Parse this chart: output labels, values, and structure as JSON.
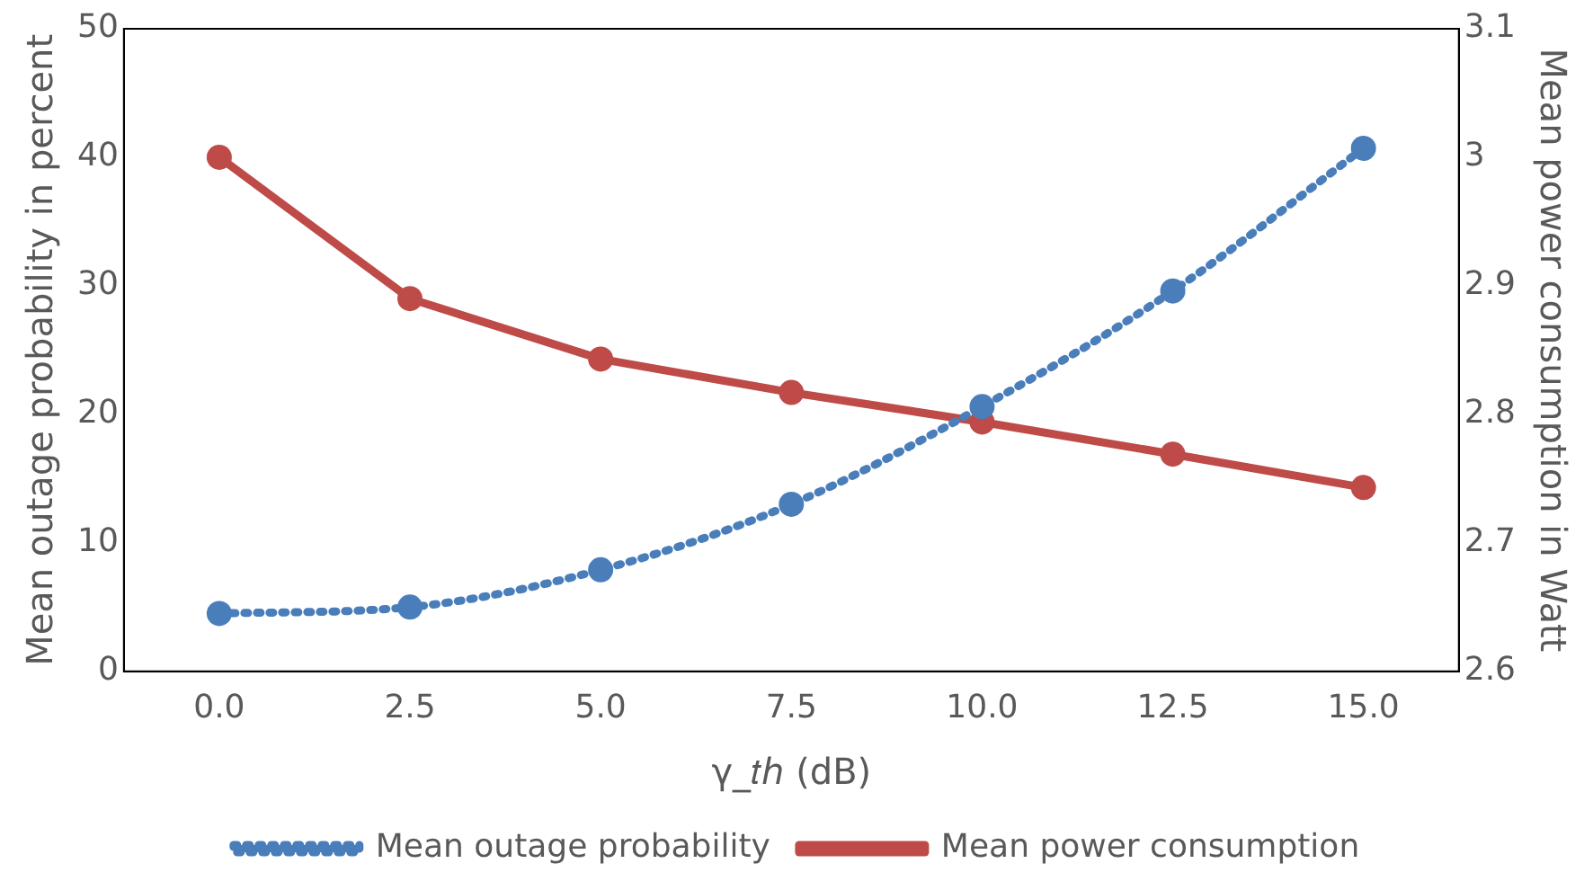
{
  "chart_data": {
    "type": "line",
    "xlabel": "γ_𝑡ℎ (dB)",
    "ylabel": "Mean outage probability in percent",
    "y2label": "Mean power consumption in Watt",
    "categories": [
      "0.0",
      "2.5",
      "5.0",
      "7.5",
      "10.0",
      "12.5",
      "15.0"
    ],
    "series": [
      {
        "name": "Mean outage probability",
        "color": "#4a7ebb",
        "values": [
          4.5,
          5.0,
          7.9,
          13.0,
          20.6,
          29.6,
          40.7
        ],
        "line_style": "dotted",
        "marker": "circle"
      },
      {
        "name": "Mean power consumption",
        "color": "#be4b48",
        "values": [
          3.0,
          2.89,
          2.843,
          2.817,
          2.794,
          2.769,
          2.743
        ],
        "line_style": "solid",
        "marker": "circle",
        "axis": "y2"
      }
    ],
    "ylim": [
      0,
      50
    ],
    "yticks": [
      0,
      10,
      20,
      30,
      40,
      50
    ],
    "y2lim": [
      2.6,
      3.1
    ],
    "y2ticks": [
      2.6,
      2.7,
      2.8,
      2.9,
      3,
      3.1
    ],
    "grid": false,
    "legend": "bottom"
  }
}
